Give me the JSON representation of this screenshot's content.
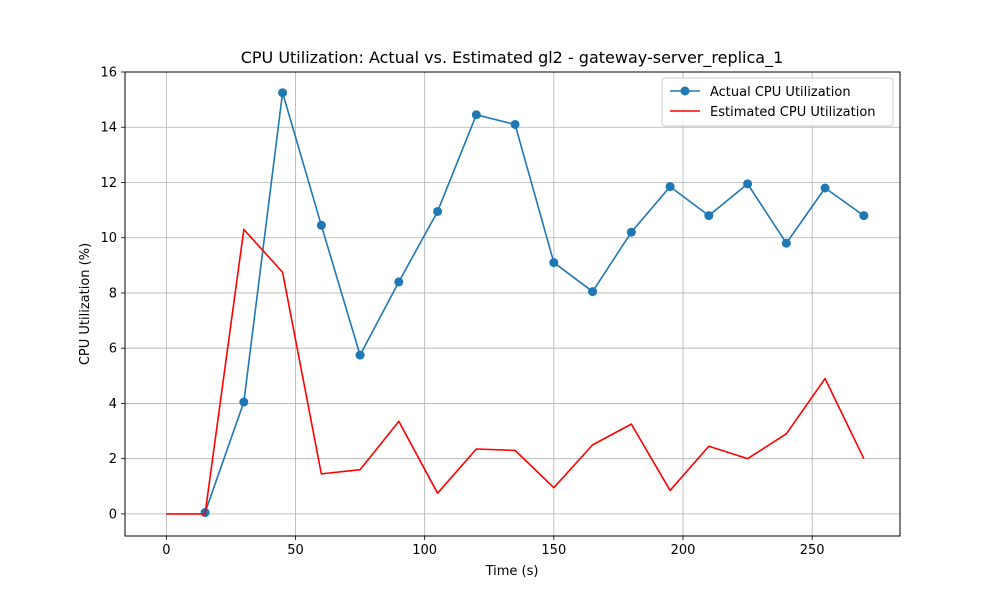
{
  "chart_data": {
    "type": "line",
    "title": "CPU Utilization: Actual vs. Estimated gl2 - gateway-server_replica_1",
    "xlabel": "Time (s)",
    "ylabel": "CPU Utilization (%)",
    "xlim": [
      -16,
      284
    ],
    "ylim": [
      -0.8,
      16
    ],
    "xticks": [
      0,
      50,
      100,
      150,
      200,
      250
    ],
    "yticks": [
      0,
      2,
      4,
      6,
      8,
      10,
      12,
      14,
      16
    ],
    "grid": true,
    "legend_position": "top-right",
    "series": [
      {
        "name": "Actual CPU Utilization",
        "color": "#1f77b4",
        "marker": "circle",
        "x": [
          15,
          30,
          45,
          60,
          75,
          90,
          105,
          120,
          135,
          150,
          165,
          180,
          195,
          210,
          225,
          240,
          255,
          270
        ],
        "y": [
          0.05,
          4.05,
          15.25,
          10.45,
          5.75,
          8.4,
          10.95,
          14.45,
          14.1,
          9.1,
          8.05,
          10.2,
          11.85,
          10.8,
          11.95,
          9.8,
          11.8,
          10.8
        ]
      },
      {
        "name": "Estimated CPU Utilization",
        "color": "#ff0000",
        "marker": "none",
        "x": [
          0,
          15,
          30,
          45,
          60,
          75,
          90,
          105,
          120,
          135,
          150,
          165,
          180,
          195,
          210,
          225,
          240,
          255,
          270
        ],
        "y": [
          0,
          0,
          10.3,
          8.75,
          1.45,
          1.6,
          3.35,
          0.75,
          2.35,
          2.3,
          0.95,
          2.5,
          3.25,
          0.85,
          2.45,
          2.0,
          2.9,
          4.9,
          2.0
        ]
      }
    ]
  }
}
